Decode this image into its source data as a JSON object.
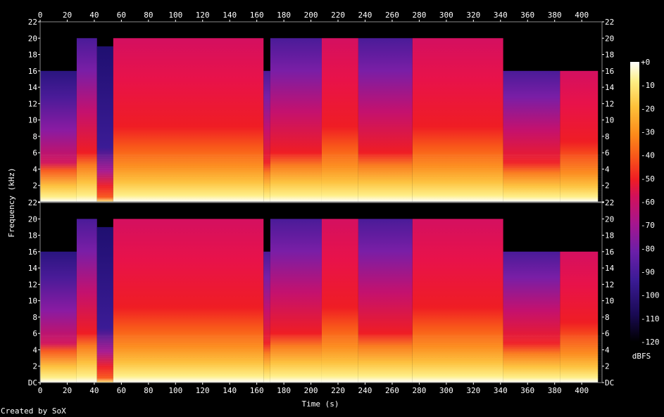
{
  "chart_data": {
    "type": "heatmap",
    "xlabel": "Time (s)",
    "ylabel": "Frequency (kHz)",
    "xlim": [
      0,
      415
    ],
    "ylim": [
      0,
      22
    ],
    "x_ticks": [
      0,
      20,
      40,
      60,
      80,
      100,
      120,
      140,
      160,
      180,
      200,
      220,
      240,
      260,
      280,
      300,
      320,
      340,
      360,
      380,
      400
    ],
    "y_ticks": [
      "DC",
      "2",
      "4",
      "6",
      "8",
      "10",
      "12",
      "14",
      "16",
      "18",
      "20",
      "22"
    ],
    "y_tick_values": [
      0,
      2,
      4,
      6,
      8,
      10,
      12,
      14,
      16,
      18,
      20,
      22
    ],
    "channels": 2,
    "colorbar": {
      "label": "dBFS",
      "range": [
        -120,
        0
      ],
      "ticks": [
        "+0",
        "-10",
        "-20",
        "-30",
        "-40",
        "-50",
        "-60",
        "-70",
        "-80",
        "-90",
        "-100",
        "-110",
        "-120"
      ],
      "tick_values": [
        0,
        -10,
        -20,
        -30,
        -40,
        -50,
        -60,
        -70,
        -80,
        -90,
        -100,
        -110,
        -120
      ]
    },
    "segments": [
      {
        "start": 0,
        "end": 27,
        "cutoff_khz": 16,
        "level": "low"
      },
      {
        "start": 27,
        "end": 42,
        "cutoff_khz": 20,
        "level": "mid"
      },
      {
        "start": 42,
        "end": 54,
        "cutoff_khz": 19,
        "level": "quiet"
      },
      {
        "start": 54,
        "end": 165,
        "cutoff_khz": 20,
        "level": "high"
      },
      {
        "start": 165,
        "end": 170,
        "cutoff_khz": 16,
        "level": "mid"
      },
      {
        "start": 170,
        "end": 208,
        "cutoff_khz": 20,
        "level": "mid"
      },
      {
        "start": 208,
        "end": 235,
        "cutoff_khz": 20,
        "level": "high"
      },
      {
        "start": 235,
        "end": 275,
        "cutoff_khz": 20,
        "level": "mid"
      },
      {
        "start": 275,
        "end": 342,
        "cutoff_khz": 20,
        "level": "high"
      },
      {
        "start": 342,
        "end": 384,
        "cutoff_khz": 16,
        "level": "mid"
      },
      {
        "start": 384,
        "end": 412,
        "cutoff_khz": 16,
        "level": "high"
      }
    ]
  },
  "footer": "Created by SoX",
  "colors": {
    "scale": [
      "#000000",
      "#1a0a55",
      "#3b1b95",
      "#6a1fa8",
      "#a5168f",
      "#d1115a",
      "#ef1d24",
      "#f8561a",
      "#fc8a1a",
      "#fdc13a",
      "#feee84",
      "#ffffff"
    ]
  }
}
